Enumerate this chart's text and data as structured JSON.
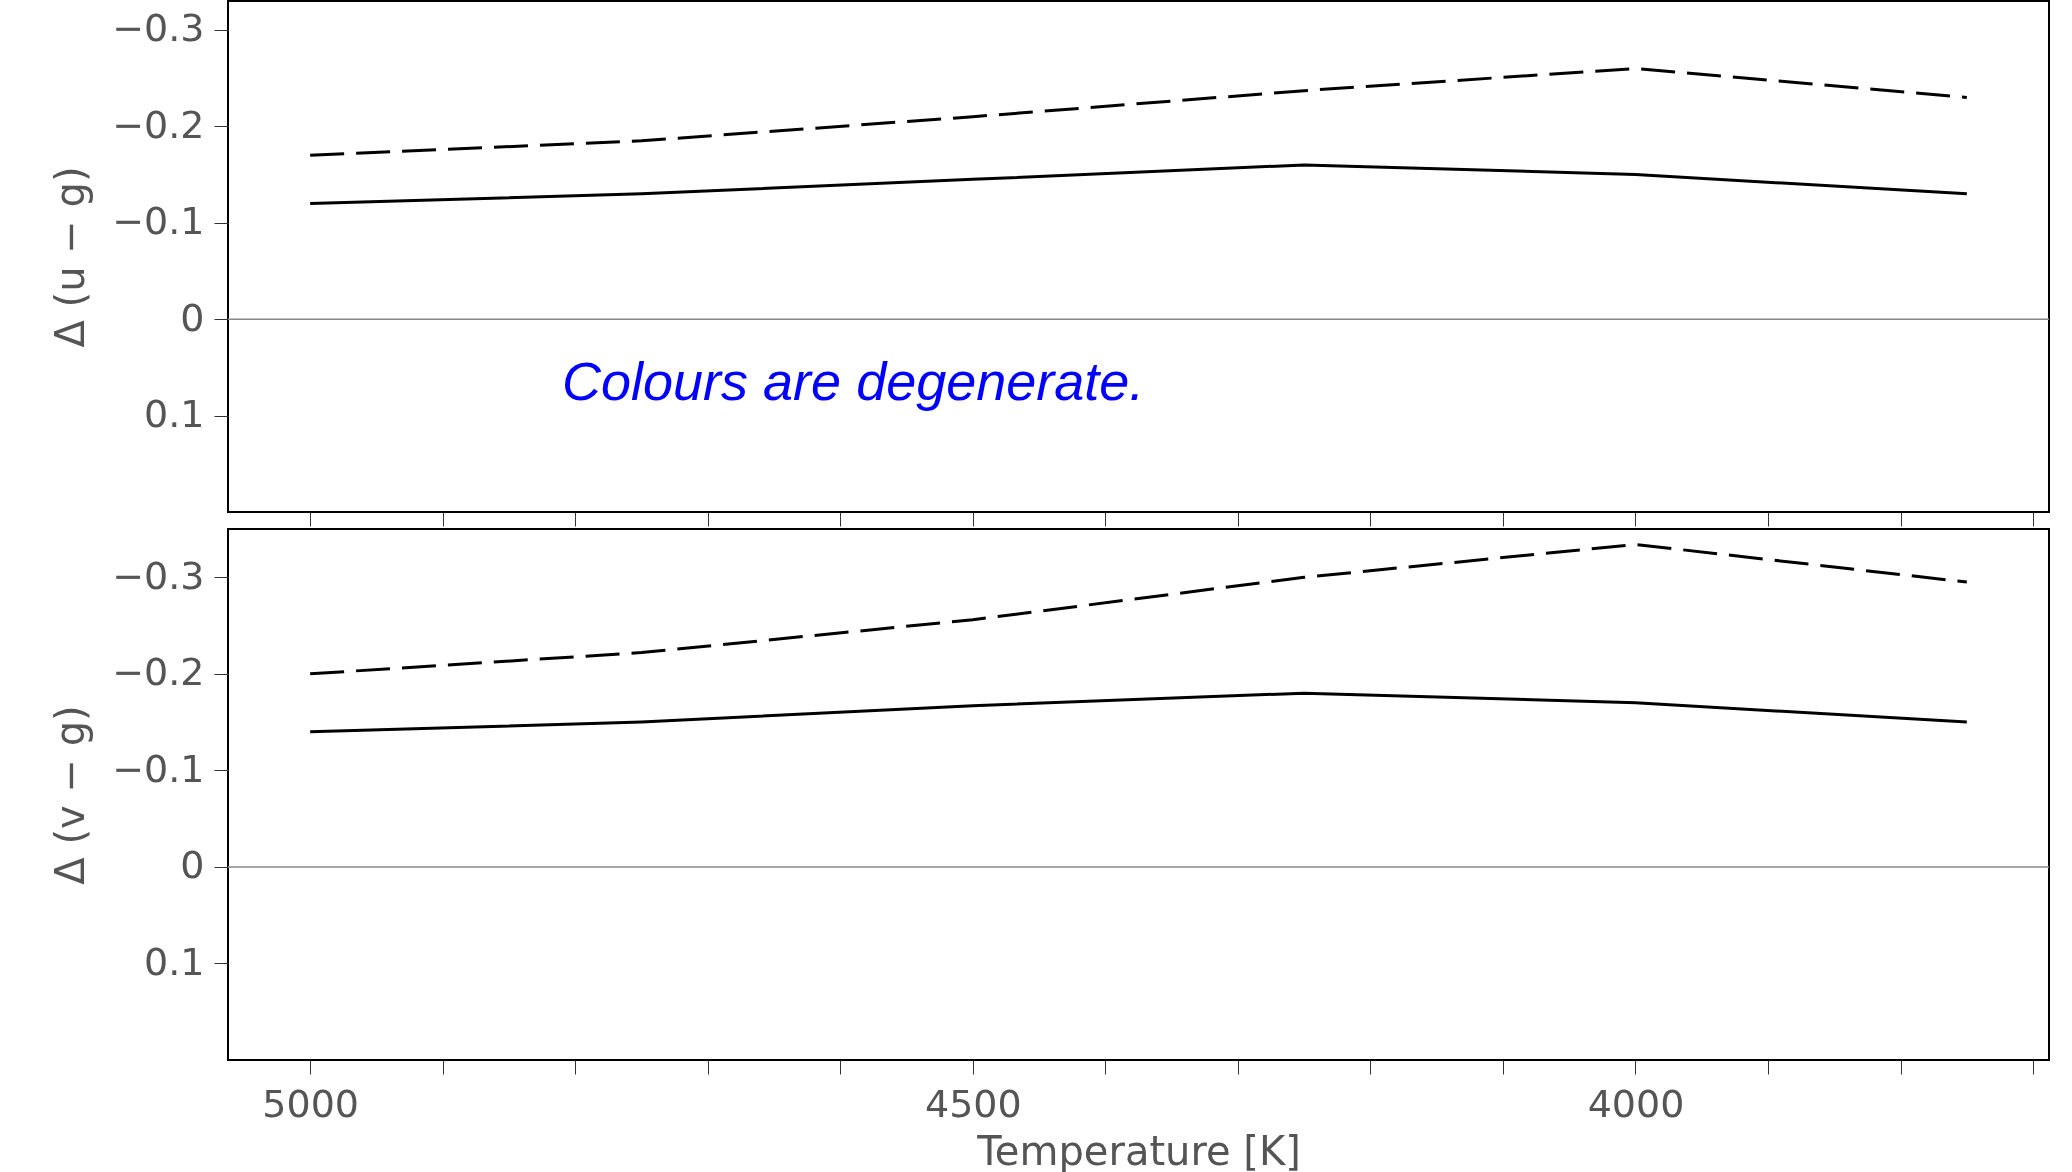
{
  "chart_data": [
    {
      "type": "line",
      "ylabel": "Δ (u − g)",
      "x": [
        5000,
        4750,
        4500,
        4250,
        4000,
        3750
      ],
      "xlim": [
        5062,
        3688
      ],
      "ylim": [
        0.2,
        -0.33
      ],
      "xticks": [
        5000,
        {
          "value": 4900,
          "label": null
        },
        {
          "value": 4800,
          "label": null
        },
        {
          "value": 4700,
          "label": null
        },
        {
          "value": 4600,
          "label": null
        },
        4500,
        {
          "value": 4400,
          "label": null
        },
        {
          "value": 4300,
          "label": null
        },
        {
          "value": 4200,
          "label": null
        },
        {
          "value": 4100,
          "label": null
        },
        4000,
        {
          "value": 3900,
          "label": null
        },
        {
          "value": 3800,
          "label": null
        },
        {
          "value": 3700,
          "label": null
        }
      ],
      "yticks": [
        -0.3,
        -0.2,
        -0.1,
        0,
        0.1
      ],
      "tick_labels": "y",
      "series": [
        {
          "color": "#000000",
          "line_style": "solid",
          "values": [
            -0.12,
            -0.13,
            -0.145,
            -0.16,
            -0.15,
            -0.13
          ]
        },
        {
          "color": "#000000",
          "line_style": "dashed",
          "values": [
            -0.17,
            -0.185,
            -0.21,
            -0.237,
            -0.26,
            -0.23
          ]
        }
      ],
      "ref_lines": [
        {
          "axis": "y",
          "value": 0,
          "color": "#888888"
        }
      ],
      "annotations": [
        "Colours are degenerate."
      ]
    },
    {
      "type": "line",
      "xlabel": "Temperature [K]",
      "ylabel": "Δ (v − g)",
      "x": [
        5000,
        4750,
        4500,
        4250,
        4000,
        3750
      ],
      "xlim": [
        5062,
        3688
      ],
      "ylim": [
        0.2,
        -0.35
      ],
      "xticks": [
        5000,
        {
          "value": 4900,
          "label": null
        },
        {
          "value": 4800,
          "label": null
        },
        {
          "value": 4700,
          "label": null
        },
        {
          "value": 4600,
          "label": null
        },
        4500,
        {
          "value": 4400,
          "label": null
        },
        {
          "value": 4300,
          "label": null
        },
        {
          "value": 4200,
          "label": null
        },
        {
          "value": 4100,
          "label": null
        },
        4000,
        {
          "value": 3900,
          "label": null
        },
        {
          "value": 3800,
          "label": null
        },
        {
          "value": 3700,
          "label": null
        }
      ],
      "yticks": [
        -0.3,
        -0.2,
        -0.1,
        0,
        0.1
      ],
      "series": [
        {
          "color": "#000000",
          "line_style": "solid",
          "values": [
            -0.14,
            -0.15,
            -0.167,
            -0.18,
            -0.17,
            -0.15
          ]
        },
        {
          "color": "#000000",
          "line_style": "dashed",
          "values": [
            -0.2,
            -0.222,
            -0.256,
            -0.3,
            -0.334,
            -0.295
          ]
        }
      ],
      "ref_lines": [
        {
          "axis": "y",
          "value": 0,
          "color": "#888888"
        }
      ]
    }
  ]
}
